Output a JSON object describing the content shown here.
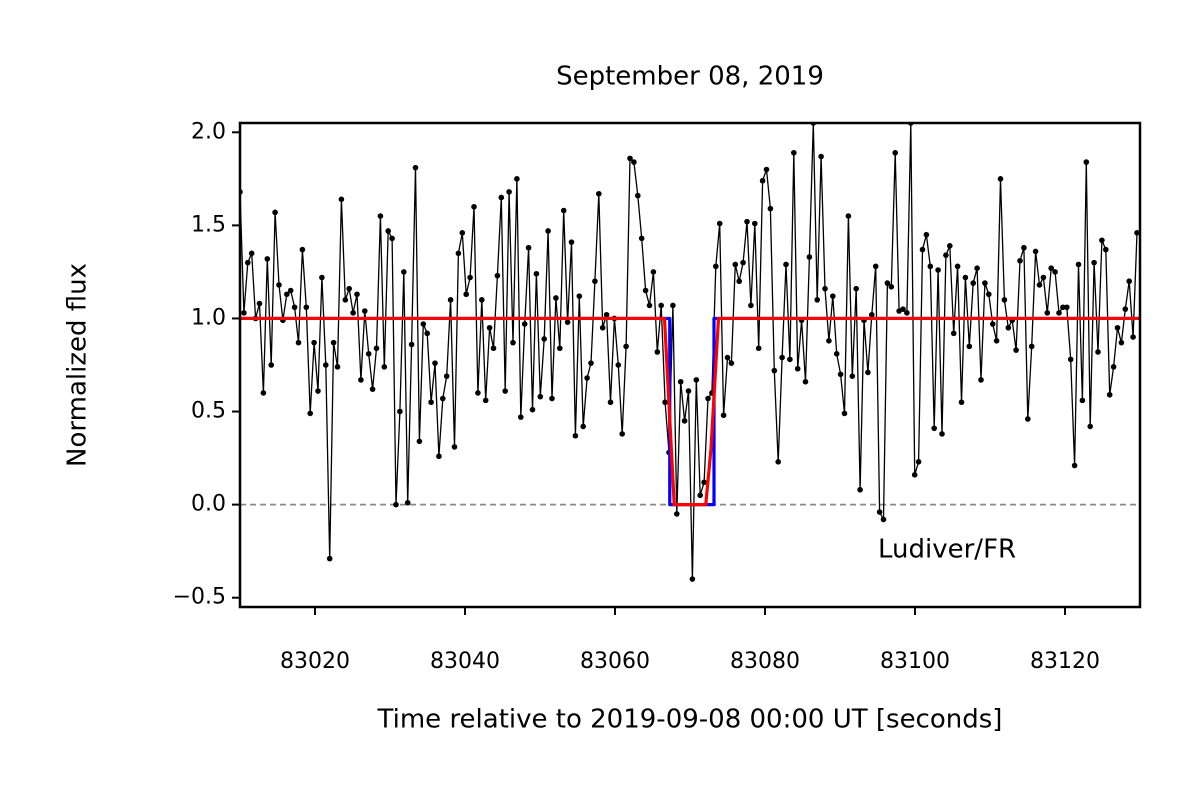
{
  "chart_data": {
    "type": "line",
    "title": "September 08, 2019",
    "xlabel": "Time relative to 2019-09-08 00:00 UT [seconds]",
    "ylabel": "Normalized flux",
    "annotation": "Ludiver/FR",
    "xlim": [
      83010,
      83130
    ],
    "ylim": [
      -0.55,
      2.05
    ],
    "xticks": [
      83020,
      83040,
      83060,
      83080,
      83100,
      83120
    ],
    "yticks": [
      {
        "value": -0.5,
        "label": "−0.5"
      },
      {
        "value": 0,
        "label": "0.0"
      },
      0.5,
      {
        "value": 1,
        "label": "1.0"
      },
      1.5,
      {
        "value": 2,
        "label": "2.0"
      }
    ],
    "hline": 0,
    "hline_color": "#888888",
    "grid": false,
    "series": [
      {
        "color": "#000000",
        "markers": true,
        "x": [
          83010,
          83010.52,
          83011.04,
          83011.56,
          83012.08,
          83012.6,
          83013.12,
          83013.64,
          83014.16,
          83014.68,
          83015.2,
          83015.72,
          83016.24,
          83016.76,
          83017.28,
          83017.8,
          83018.32,
          83018.84,
          83019.36,
          83019.88,
          83020.4,
          83020.92,
          83021.44,
          83021.96,
          83022.48,
          83023,
          83023.52,
          83024.04,
          83024.56,
          83025.08,
          83025.6,
          83026.12,
          83026.64,
          83027.16,
          83027.68,
          83028.2,
          83028.72,
          83029.24,
          83029.76,
          83030.28,
          83030.8,
          83031.32,
          83031.84,
          83032.36,
          83032.88,
          83033.4,
          83033.92,
          83034.44,
          83034.96,
          83035.48,
          83036,
          83036.52,
          83037.04,
          83037.56,
          83038.08,
          83038.6,
          83039.12,
          83039.64,
          83040.16,
          83040.68,
          83041.2,
          83041.72,
          83042.24,
          83042.76,
          83043.28,
          83043.8,
          83044.32,
          83044.84,
          83045.36,
          83045.88,
          83046.4,
          83046.92,
          83047.44,
          83047.96,
          83048.48,
          83049,
          83049.52,
          83050.04,
          83050.56,
          83051.08,
          83051.6,
          83052.12,
          83052.64,
          83053.16,
          83053.68,
          83054.2,
          83054.72,
          83055.24,
          83055.76,
          83056.28,
          83056.8,
          83057.32,
          83057.84,
          83058.36,
          83058.88,
          83059.4,
          83059.92,
          83060.44,
          83060.96,
          83061.48,
          83062,
          83062.52,
          83063.04,
          83063.56,
          83064.08,
          83064.6,
          83065.12,
          83065.64,
          83066.16,
          83066.68,
          83067.2,
          83067.72,
          83068.24,
          83068.76,
          83069.28,
          83069.8,
          83070.32,
          83070.84,
          83071.36,
          83071.88,
          83072.4,
          83072.92,
          83073.44,
          83073.96,
          83074.48,
          83075,
          83075.52,
          83076.04,
          83076.56,
          83077.08,
          83077.6,
          83078.12,
          83078.64,
          83079.16,
          83079.68,
          83080.2,
          83080.72,
          83081.24,
          83081.76,
          83082.28,
          83082.8,
          83083.32,
          83083.84,
          83084.36,
          83084.88,
          83085.4,
          83085.92,
          83086.44,
          83086.96,
          83087.48,
          83088,
          83088.52,
          83089.04,
          83089.56,
          83090.08,
          83090.6,
          83091.12,
          83091.64,
          83092.16,
          83092.68,
          83093.2,
          83093.72,
          83094.24,
          83094.76,
          83095.28,
          83095.8,
          83096.32,
          83096.84,
          83097.36,
          83097.88,
          83098.4,
          83098.92,
          83099.44,
          83099.96,
          83100.48,
          83101,
          83101.52,
          83102.04,
          83102.56,
          83103.08,
          83103.6,
          83104.12,
          83104.64,
          83105.16,
          83105.68,
          83106.2,
          83106.72,
          83107.24,
          83107.76,
          83108.28,
          83108.8,
          83109.32,
          83109.84,
          83110.36,
          83110.88,
          83111.4,
          83111.92,
          83112.44,
          83112.96,
          83113.48,
          83114,
          83114.52,
          83115.04,
          83115.56,
          83116.08,
          83116.6,
          83117.12,
          83117.64,
          83118.16,
          83118.68,
          83119.2,
          83119.72,
          83120.24,
          83120.76,
          83121.28,
          83121.8,
          83122.32,
          83122.84,
          83123.36,
          83123.88,
          83124.4,
          83124.92,
          83125.44,
          83125.96,
          83126.48,
          83127,
          83127.52,
          83128.04,
          83128.56,
          83129.08,
          83129.6
        ],
        "values": [
          1.68,
          1.03,
          1.3,
          1.35,
          1.0,
          1.08,
          0.6,
          1.32,
          0.75,
          1.57,
          1.18,
          0.99,
          1.13,
          1.15,
          1.06,
          0.87,
          1.37,
          1.06,
          0.49,
          0.87,
          0.61,
          1.22,
          0.75,
          -0.29,
          0.87,
          0.74,
          1.64,
          1.1,
          1.16,
          1.03,
          1.13,
          0.67,
          1.04,
          0.81,
          0.62,
          0.84,
          1.55,
          0.74,
          1.47,
          1.43,
          0.0,
          0.5,
          1.25,
          0.01,
          0.86,
          1.81,
          0.34,
          0.97,
          0.92,
          0.55,
          0.76,
          0.26,
          0.57,
          0.69,
          1.1,
          0.31,
          1.35,
          1.46,
          1.13,
          1.22,
          1.6,
          0.6,
          1.1,
          0.56,
          0.95,
          0.84,
          1.23,
          1.65,
          0.61,
          1.68,
          0.87,
          1.75,
          0.47,
          0.97,
          1.38,
          0.51,
          1.24,
          0.58,
          0.89,
          1.47,
          0.57,
          1.11,
          0.84,
          1.58,
          0.98,
          1.41,
          0.37,
          1.12,
          0.42,
          0.68,
          0.76,
          1.2,
          1.67,
          0.95,
          1.02,
          0.55,
          1.0,
          0.75,
          0.38,
          0.85,
          1.86,
          1.84,
          1.66,
          1.43,
          1.15,
          1.07,
          1.25,
          0.82,
          1.07,
          0.55,
          0.28,
          1.07,
          -0.05,
          0.66,
          0.45,
          0.61,
          -0.4,
          0.67,
          0.05,
          0.12,
          0.57,
          0.6,
          1.28,
          1.51,
          0.48,
          0.79,
          0.76,
          1.29,
          1.2,
          1.3,
          1.52,
          1.07,
          1.51,
          0.84,
          1.74,
          1.8,
          1.59,
          0.72,
          0.23,
          0.79,
          1.29,
          0.78,
          1.89,
          0.73,
          0.99,
          0.66,
          1.33,
          2.05,
          1.1,
          1.87,
          1.16,
          0.88,
          1.12,
          0.81,
          0.7,
          0.49,
          1.55,
          0.69,
          1.16,
          0.08,
          0.99,
          0.71,
          1.02,
          1.28,
          -0.04,
          -0.08,
          1.19,
          1.17,
          1.89,
          1.04,
          1.05,
          1.03,
          2.05,
          0.16,
          0.23,
          1.37,
          1.45,
          1.28,
          0.41,
          1.26,
          0.38,
          1.34,
          1.39,
          0.92,
          1.28,
          0.55,
          1.22,
          0.85,
          1.19,
          1.27,
          0.67,
          1.19,
          1.13,
          0.97,
          0.88,
          1.75,
          1.1,
          0.95,
          0.99,
          0.83,
          1.31,
          1.38,
          0.46,
          0.85,
          1.36,
          1.18,
          1.22,
          1.03,
          1.27,
          1.25,
          1.03,
          1.06,
          1.06,
          0.78,
          0.21,
          1.29,
          0.56,
          1.84,
          0.42,
          1.3,
          0.82,
          1.42,
          1.37,
          0.59,
          0.74,
          0.95,
          0.87,
          1.05,
          1.2,
          0.9,
          1.46
        ]
      },
      {
        "color": "#0000ff",
        "markers": false,
        "x": [
          83010,
          83067.3,
          83067.3,
          83073.2,
          83073.2,
          83130
        ],
        "values": [
          1,
          1,
          0,
          0,
          1,
          1
        ]
      },
      {
        "color": "#ff0000",
        "markers": false,
        "x": [
          83010,
          83066.6,
          83067.9,
          83072.1,
          83072.8,
          83073.8,
          83130
        ],
        "values": [
          1,
          1,
          0,
          0,
          0.3,
          1,
          1
        ]
      }
    ]
  }
}
